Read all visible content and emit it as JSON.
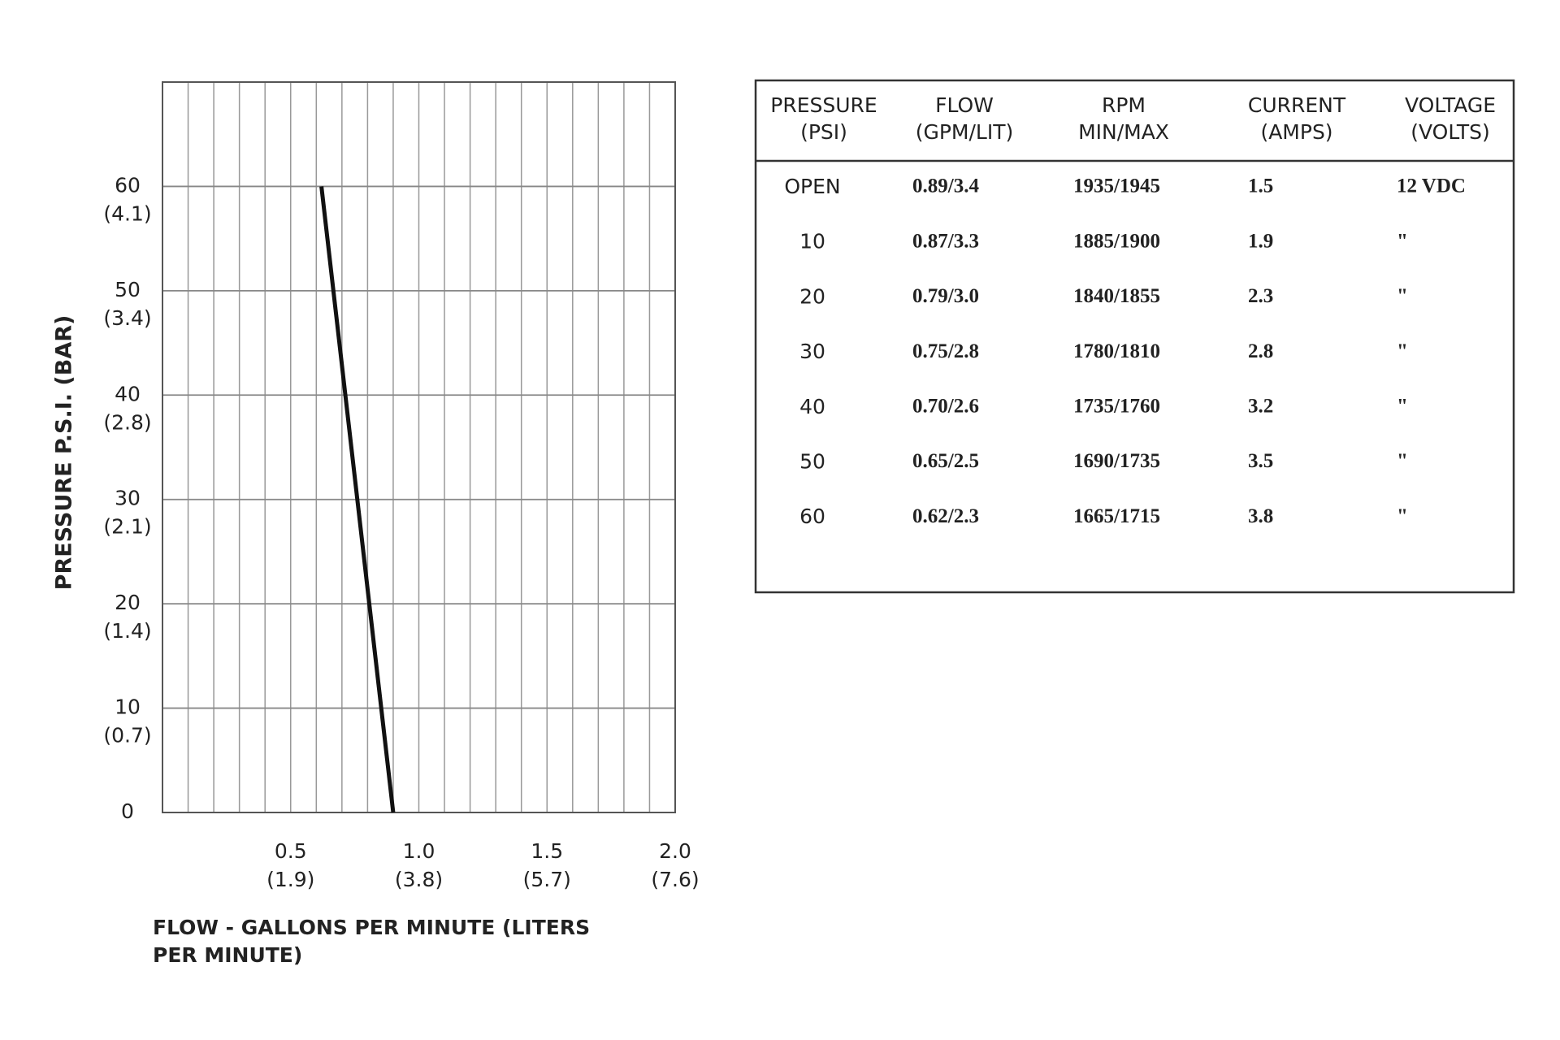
{
  "chart_data": {
    "type": "line",
    "xlabel": "FLOW - GALLONS PER MINUTE  (LITERS PER MINUTE)",
    "ylabel": "PRESSURE  P.S.I.   (BAR)",
    "xlim": [
      0,
      2.0
    ],
    "xticks": [
      0.5,
      {
        "value": 1.0,
        "label": "1.0"
      },
      1.5,
      {
        "value": 2.0,
        "label": "2.0"
      }
    ],
    "xticks_liters": [
      {
        "value": 0.5,
        "label": "(1.9)"
      },
      {
        "value": 1.0,
        "label": "(3.8)"
      },
      {
        "value": 1.5,
        "label": "(5.7)"
      },
      {
        "value": 2.0,
        "label": "(7.6)"
      }
    ],
    "xgrid": [
      0.1,
      0.2,
      0.3,
      0.4,
      0.5,
      0.6,
      0.7,
      0.8,
      0.9,
      1.0,
      1.1,
      1.2,
      1.3,
      1.4,
      1.5,
      1.6,
      1.7,
      1.8,
      1.9
    ],
    "ylim": [
      0,
      70
    ],
    "yticks": [
      0,
      10,
      20,
      30,
      40,
      50,
      60
    ],
    "yticks_bar": [
      {
        "value": 10,
        "label": "(0.7)"
      },
      {
        "value": 20,
        "label": "(1.4)"
      },
      {
        "value": 30,
        "label": "(2.1)"
      },
      {
        "value": 40,
        "label": "(2.8)"
      },
      {
        "value": 50,
        "label": "(3.4)"
      },
      {
        "value": 60,
        "label": "(4.1)"
      }
    ],
    "grid": true,
    "series": [
      {
        "x": [
          0.9,
          0.62
        ],
        "values": [
          0,
          60
        ],
        "color": "#111111"
      }
    ]
  },
  "table": {
    "headers": [
      [
        "PRESSURE",
        "(PSI)"
      ],
      [
        "FLOW",
        "(GPM/LIT)"
      ],
      [
        "RPM",
        "MIN/MAX"
      ],
      [
        "CURRENT",
        "(AMPS)"
      ],
      [
        "VOLTAGE",
        "(VOLTS)"
      ]
    ],
    "rows": [
      [
        "OPEN",
        "0.89/3.4",
        "1935/1945",
        "1.5",
        "12 VDC"
      ],
      [
        "10",
        "0.87/3.3",
        "1885/1900",
        "1.9",
        "\""
      ],
      [
        "20",
        "0.79/3.0",
        "1840/1855",
        "2.3",
        "\""
      ],
      [
        "30",
        "0.75/2.8",
        "1780/1810",
        "2.8",
        "\""
      ],
      [
        "40",
        "0.70/2.6",
        "1735/1760",
        "3.2",
        "\""
      ],
      [
        "50",
        "0.65/2.5",
        "1690/1735",
        "3.5",
        "\""
      ],
      [
        "60",
        "0.62/2.3",
        "1665/1715",
        "3.8",
        "\""
      ]
    ]
  }
}
